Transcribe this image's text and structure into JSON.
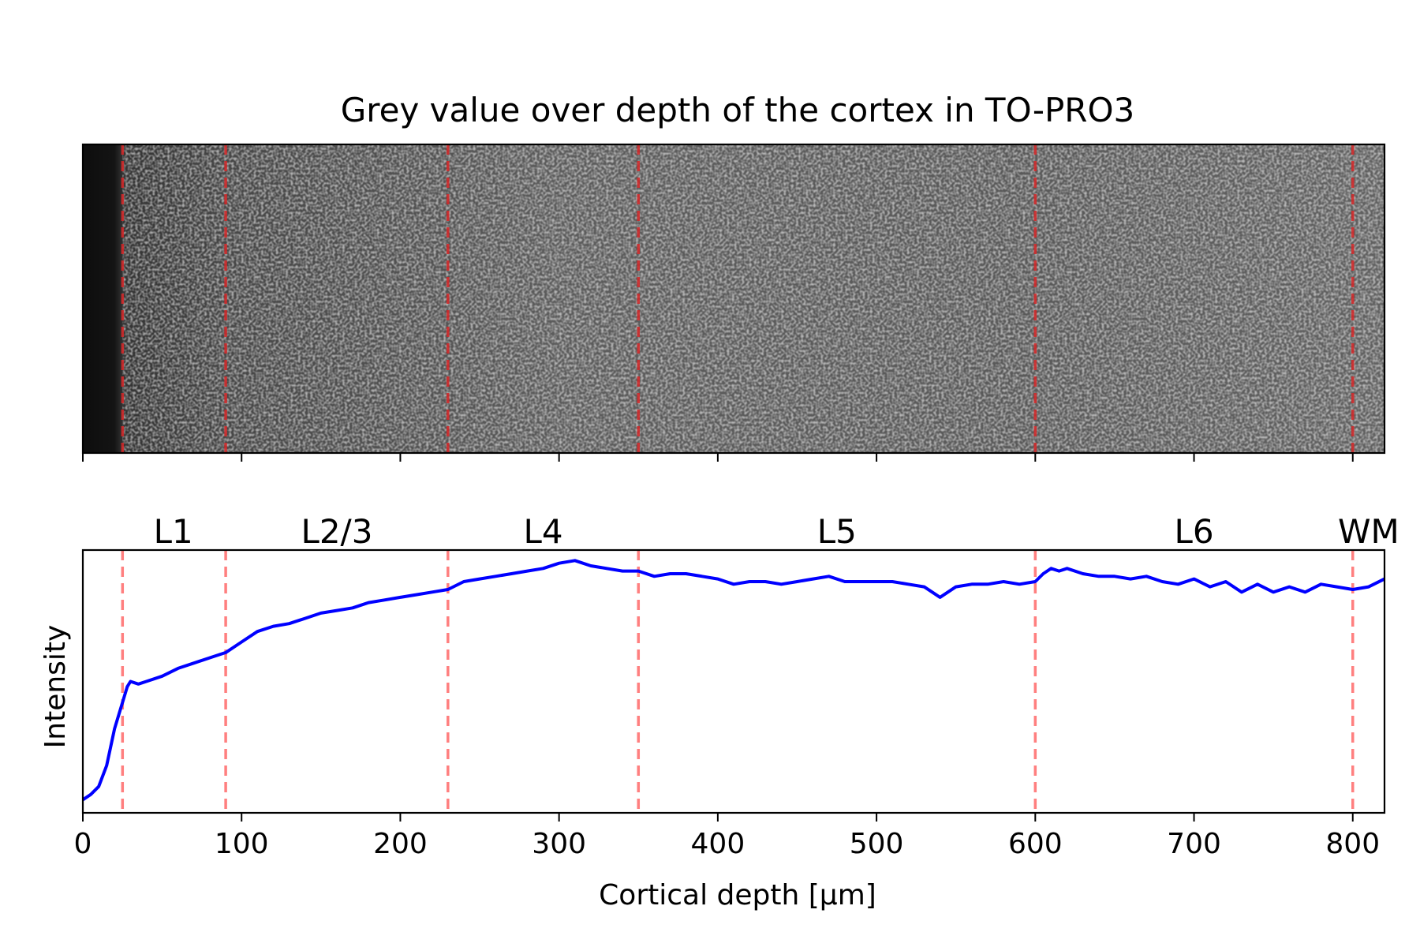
{
  "chart_data": [
    {
      "type": "image",
      "title": "Grey value over depth of the cortex in TO-PRO3",
      "x": {
        "min": 0,
        "max": 820,
        "ticks": [
          0,
          100,
          200,
          300,
          400,
          500,
          600,
          700,
          800
        ],
        "tick_labels_shown": false
      },
      "y": {
        "ticks": []
      },
      "boundaries": [
        25,
        90,
        230,
        350,
        600,
        800
      ],
      "boundary_color": "#d62728",
      "image": {
        "colormap": "grey",
        "dark_edge_until": 25,
        "brightness_profile": [
          [
            0,
            0.05
          ],
          [
            20,
            0.08
          ],
          [
            25,
            0.2
          ],
          [
            90,
            0.28
          ],
          [
            230,
            0.33
          ],
          [
            300,
            0.36
          ],
          [
            600,
            0.35
          ],
          [
            820,
            0.38
          ]
        ]
      }
    },
    {
      "type": "line",
      "title": "",
      "xlabel": "Cortical depth [μm]",
      "ylabel": "Intensity",
      "xlim": [
        0,
        820
      ],
      "ylim": [
        0,
        1
      ],
      "x_ticks": [
        0,
        100,
        200,
        300,
        400,
        500,
        600,
        700,
        800
      ],
      "x_tick_labels": [
        "0",
        "100",
        "200",
        "300",
        "400",
        "500",
        "600",
        "700",
        "800"
      ],
      "y_ticks_shown": false,
      "boundaries": [
        25,
        90,
        230,
        350,
        600,
        800
      ],
      "boundary_color": "#ff7f7f",
      "layer_labels": [
        {
          "text": "L1",
          "x": 57
        },
        {
          "text": "L2/3",
          "x": 160
        },
        {
          "text": "L4",
          "x": 290
        },
        {
          "text": "L5",
          "x": 475
        },
        {
          "text": "L6",
          "x": 700
        },
        {
          "text": "WM",
          "x": 810
        }
      ],
      "series": [
        {
          "color": "#0000ff",
          "x": [
            0,
            5,
            10,
            15,
            20,
            25,
            28,
            30,
            35,
            40,
            50,
            60,
            70,
            80,
            90,
            100,
            110,
            120,
            130,
            140,
            150,
            160,
            170,
            180,
            190,
            200,
            210,
            220,
            230,
            240,
            250,
            260,
            270,
            280,
            290,
            300,
            310,
            320,
            330,
            340,
            350,
            360,
            370,
            380,
            390,
            400,
            410,
            420,
            430,
            440,
            450,
            460,
            470,
            480,
            490,
            500,
            510,
            520,
            530,
            540,
            550,
            560,
            570,
            580,
            590,
            600,
            605,
            610,
            615,
            620,
            630,
            640,
            650,
            660,
            670,
            680,
            690,
            700,
            710,
            720,
            730,
            740,
            750,
            760,
            770,
            780,
            790,
            800,
            810,
            820
          ],
          "y": [
            0.05,
            0.07,
            0.1,
            0.18,
            0.32,
            0.42,
            0.48,
            0.5,
            0.49,
            0.5,
            0.52,
            0.55,
            0.57,
            0.59,
            0.61,
            0.65,
            0.69,
            0.71,
            0.72,
            0.74,
            0.76,
            0.77,
            0.78,
            0.8,
            0.81,
            0.82,
            0.83,
            0.84,
            0.85,
            0.88,
            0.89,
            0.9,
            0.91,
            0.92,
            0.93,
            0.95,
            0.96,
            0.94,
            0.93,
            0.92,
            0.92,
            0.9,
            0.91,
            0.91,
            0.9,
            0.89,
            0.87,
            0.88,
            0.88,
            0.87,
            0.88,
            0.89,
            0.9,
            0.88,
            0.88,
            0.88,
            0.88,
            0.87,
            0.86,
            0.82,
            0.86,
            0.87,
            0.87,
            0.88,
            0.87,
            0.88,
            0.91,
            0.93,
            0.92,
            0.93,
            0.91,
            0.9,
            0.9,
            0.89,
            0.9,
            0.88,
            0.87,
            0.89,
            0.86,
            0.88,
            0.84,
            0.87,
            0.84,
            0.86,
            0.84,
            0.87,
            0.86,
            0.85,
            0.86,
            0.89
          ]
        }
      ]
    }
  ]
}
